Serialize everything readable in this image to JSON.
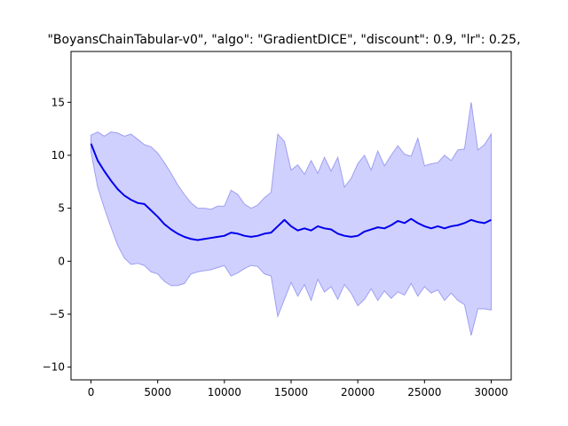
{
  "chart_data": {
    "type": "line",
    "title": "\"BoyansChainTabular-v0\", \"algo\": \"GradientDICE\", \"discount\": 0.9, \"lr\": 0.25,",
    "xlabel": "",
    "ylabel": "",
    "xlim": [
      -1500,
      31500
    ],
    "ylim": [
      -11.2,
      19.8
    ],
    "xticks": [
      0,
      5000,
      10000,
      15000,
      20000,
      25000,
      30000
    ],
    "xtick_labels": [
      "0",
      "5000",
      "10000",
      "15000",
      "20000",
      "25000",
      "30000"
    ],
    "yticks": [
      -10,
      -5,
      0,
      5,
      10,
      15
    ],
    "ytick_labels": [
      "−10",
      "−5",
      "0",
      "5",
      "10",
      "15"
    ],
    "grid": false,
    "colors": {
      "mean_line": "#0000ee",
      "band_fill": "#d0d0ff",
      "band_edge": "#9e9ef2"
    },
    "series": [
      {
        "x": [
          0,
          500,
          1000,
          1500,
          2000,
          2500,
          3000,
          3500,
          4000,
          4500,
          5000,
          5500,
          6000,
          6500,
          7000,
          7500,
          8000,
          8500,
          9000,
          9500,
          10000,
          10500,
          11000,
          11500,
          12000,
          12500,
          13000,
          13500,
          14000,
          14500,
          15000,
          15500,
          16000,
          16500,
          17000,
          17500,
          18000,
          18500,
          19000,
          19500,
          20000,
          20500,
          21000,
          21500,
          22000,
          22500,
          23000,
          23500,
          24000,
          24500,
          25000,
          25500,
          26000,
          26500,
          27000,
          27500,
          28000,
          28500,
          29000,
          29500,
          30000
        ],
        "mean": [
          11.1,
          9.5,
          8.5,
          7.6,
          6.8,
          6.2,
          5.8,
          5.5,
          5.4,
          4.8,
          4.2,
          3.5,
          3.0,
          2.6,
          2.3,
          2.1,
          2.0,
          2.1,
          2.2,
          2.3,
          2.4,
          2.7,
          2.6,
          2.4,
          2.3,
          2.4,
          2.6,
          2.7,
          3.3,
          3.9,
          3.3,
          2.9,
          3.1,
          2.9,
          3.3,
          3.1,
          3.0,
          2.6,
          2.4,
          2.3,
          2.4,
          2.8,
          3.0,
          3.2,
          3.1,
          3.4,
          3.8,
          3.6,
          4.0,
          3.6,
          3.3,
          3.1,
          3.3,
          3.1,
          3.3,
          3.4,
          3.6,
          3.9,
          3.7,
          3.6,
          3.9
        ],
        "upper": [
          11.9,
          12.2,
          11.8,
          12.2,
          12.1,
          11.8,
          12.0,
          11.5,
          11.0,
          10.8,
          10.2,
          9.3,
          8.3,
          7.2,
          6.3,
          5.5,
          5.0,
          5.0,
          4.9,
          5.2,
          5.2,
          6.7,
          6.3,
          5.4,
          5.0,
          5.3,
          6.0,
          6.5,
          12.0,
          11.3,
          8.6,
          9.1,
          8.2,
          9.5,
          8.3,
          9.8,
          8.5,
          9.8,
          7.0,
          7.8,
          9.2,
          10.0,
          8.6,
          10.4,
          9.0,
          10.0,
          10.9,
          10.1,
          9.9,
          11.6,
          9.0,
          9.2,
          9.3,
          10.0,
          9.5,
          10.5,
          10.6,
          15.0,
          10.5,
          11.0,
          12.0
        ],
        "lower": [
          10.3,
          7.0,
          5.0,
          3.2,
          1.5,
          0.3,
          -0.3,
          -0.2,
          -0.4,
          -1.0,
          -1.2,
          -1.9,
          -2.3,
          -2.3,
          -2.1,
          -1.2,
          -1.0,
          -0.9,
          -0.8,
          -0.6,
          -0.4,
          -1.4,
          -1.1,
          -0.7,
          -0.4,
          -0.5,
          -1.2,
          -1.4,
          -5.2,
          -3.6,
          -2.0,
          -3.3,
          -2.2,
          -3.7,
          -1.7,
          -2.9,
          -2.4,
          -3.6,
          -2.2,
          -3.0,
          -4.2,
          -3.6,
          -2.6,
          -3.7,
          -2.8,
          -3.5,
          -2.9,
          -3.2,
          -2.1,
          -3.3,
          -2.4,
          -3.0,
          -2.7,
          -3.7,
          -3.0,
          -3.7,
          -4.1,
          -7.0,
          -4.5,
          -4.5,
          -4.6
        ]
      }
    ]
  }
}
